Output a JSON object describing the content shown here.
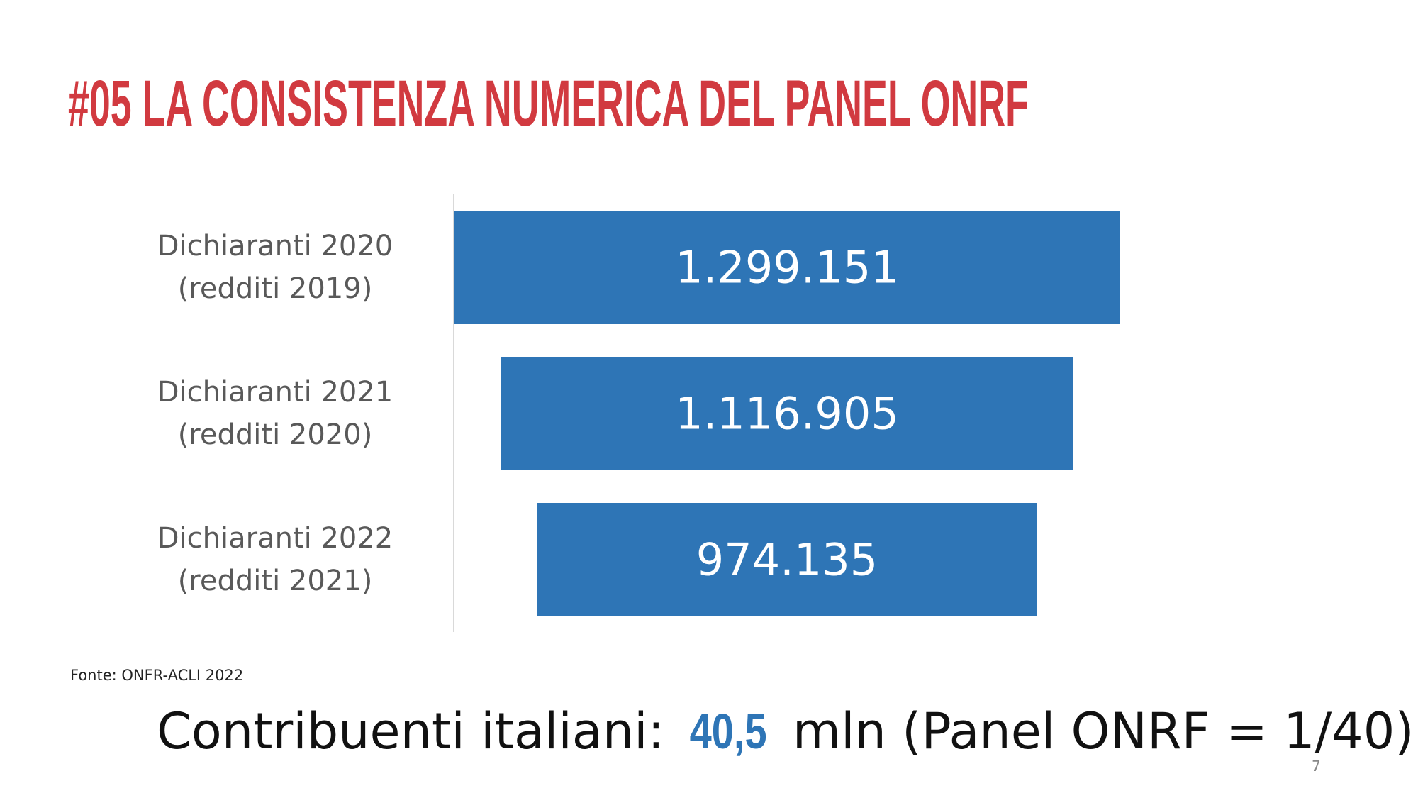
{
  "header": {
    "title": "#05 LA CONSISTENZA NUMERICA DEL PANEL ONRF"
  },
  "chart_data": {
    "type": "funnel",
    "categories": [
      "Dichiaranti 2020 (redditi 2019)",
      "Dichiaranti 2021 (redditi 2020)",
      "Dichiaranti 2022 (redditi 2021)"
    ],
    "values": [
      1299151,
      1116905,
      974135
    ],
    "value_labels": [
      "1.299.151",
      "1.116.905",
      "974.135"
    ],
    "color": "#2e75b6"
  },
  "source": "Fonte: ONFR-ACLI 2022",
  "footer": {
    "text_before": "Contribuenti italiani:",
    "highlight": "40,5",
    "text_after": "mln (Panel ONRF = 1/40)"
  },
  "page_number": "7"
}
